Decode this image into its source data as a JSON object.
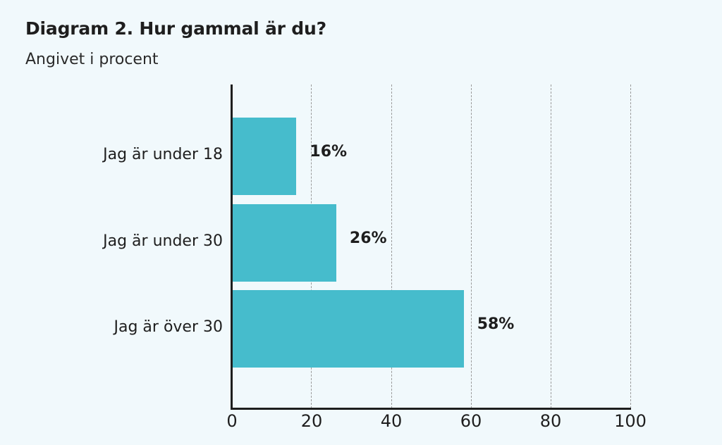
{
  "title": "Diagram 2. Hur gammal är du?",
  "subtitle": "Angivet i procent",
  "colors": {
    "bar": "#46bccc",
    "background": "#f1f9fc",
    "text": "#1e1e1e",
    "grid": "#9a9a9a"
  },
  "chart_data": {
    "type": "bar",
    "orientation": "horizontal",
    "title": "Diagram 2. Hur gammal är du?",
    "subtitle": "Angivet i procent",
    "categories": [
      "Jag är under 18",
      "Jag är under 30",
      "Jag är över 30"
    ],
    "values": [
      16,
      26,
      58
    ],
    "value_labels": [
      "16%",
      "26%",
      "58%"
    ],
    "xlabel": "",
    "ylabel": "",
    "xlim": [
      0,
      100
    ],
    "xticks": [
      "0",
      "20",
      "40",
      "60",
      "80",
      "100"
    ],
    "grid": "vertical dashed",
    "legend": null
  }
}
